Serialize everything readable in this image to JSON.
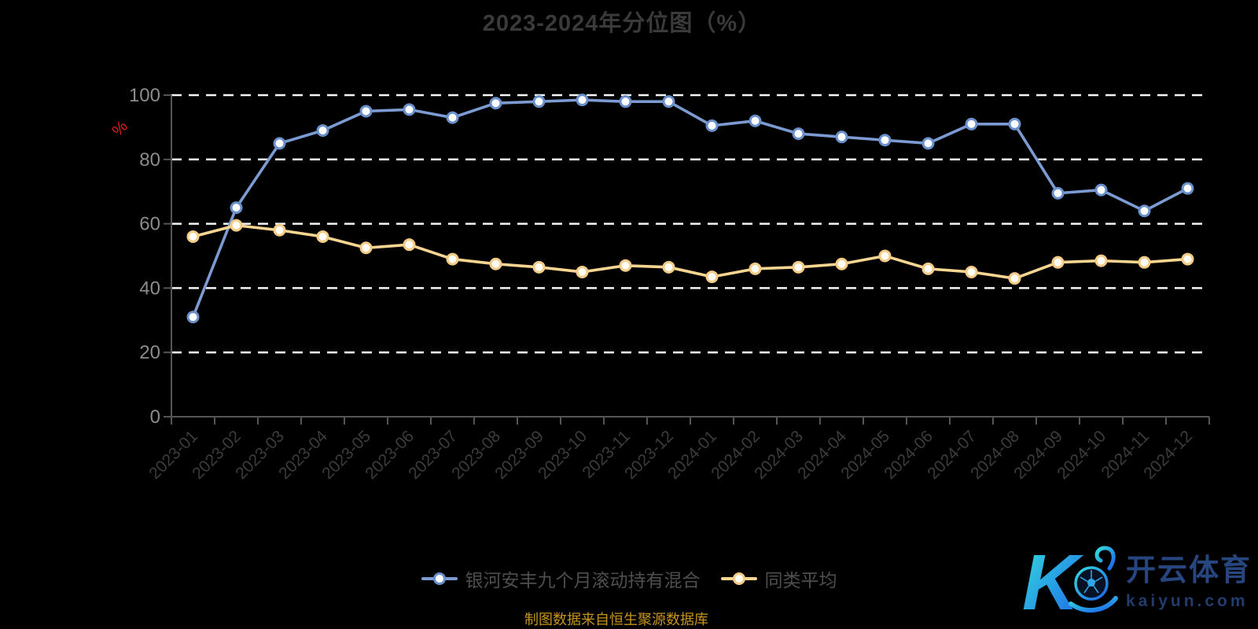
{
  "page": {
    "background": "#000000"
  },
  "chart_data": {
    "type": "line",
    "title": "2023-2024年分位图（%）",
    "y_axis_name": "%",
    "xlabel": "",
    "ylabel": "%",
    "ylim": [
      0,
      100
    ],
    "y_ticks": [
      0,
      20,
      40,
      60,
      80,
      100
    ],
    "grid": "horizontal-dashed-white",
    "legend_position": "bottom-center",
    "categories": [
      "2023-01",
      "2023-02",
      "2023-03",
      "2023-04",
      "2023-05",
      "2023-06",
      "2023-07",
      "2023-08",
      "2023-09",
      "2023-10",
      "2023-11",
      "2023-12",
      "2024-01",
      "2024-02",
      "2024-03",
      "2024-04",
      "2024-05",
      "2024-06",
      "2024-07",
      "2024-08",
      "2024-09",
      "2024-10",
      "2024-11",
      "2024-12"
    ],
    "series": [
      {
        "name": "银河安丰九个月滚动持有混合",
        "color": "#7b9bd2",
        "marker_stroke": "#6a90cc",
        "marker_fill": "#ffffff",
        "values": [
          31,
          65,
          85,
          89,
          95,
          95.5,
          93,
          97.5,
          98,
          98.5,
          98,
          98,
          90.5,
          92,
          88,
          87,
          86,
          85,
          91,
          91,
          69.5,
          70.5,
          64,
          71
        ]
      },
      {
        "name": "同类平均",
        "color": "#f8d591",
        "marker_stroke": "#f3cb86",
        "marker_fill": "#fffdf4",
        "values": [
          56,
          59.5,
          58,
          56,
          52.5,
          53.5,
          49,
          47.5,
          46.5,
          45,
          47,
          46.5,
          43.5,
          46,
          46.5,
          47.5,
          50,
          46,
          45,
          43,
          48,
          48.5,
          48,
          49
        ]
      }
    ]
  },
  "source_note": "制图数据来自恒生聚源数据库",
  "logo": {
    "monogram": "K",
    "brand_cn": "开云体育",
    "brand_domain": "kaiyun.com",
    "gradient_from": "#35dede",
    "gradient_to": "#1b63ea",
    "brand_cn_color": "#27457f",
    "domain_color": "#223c6e"
  },
  "colors": {
    "c-bg": "#000000",
    "c-title": "#3a3a3a",
    "c-ylab": "#8c8c8c",
    "c-xlab": "#3c3c3c",
    "c-axis": "#555555",
    "c-grid": "#f5f5f5",
    "c-legend": "#4e4e4e",
    "c-source": "#c5941e",
    "c-red": "#e02020"
  }
}
